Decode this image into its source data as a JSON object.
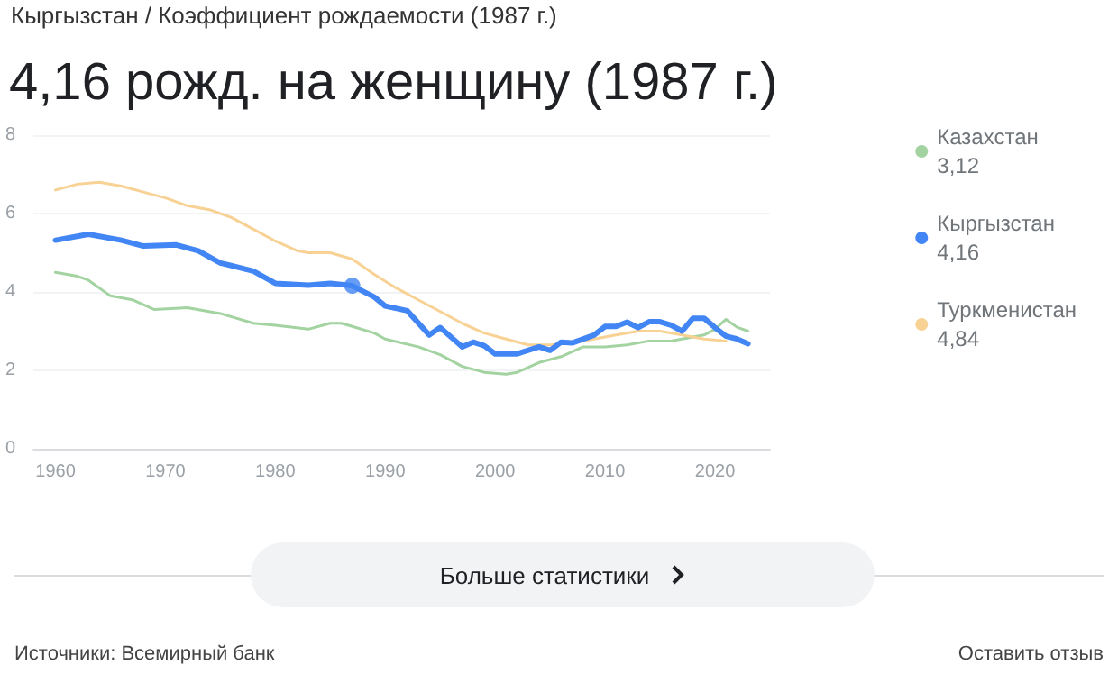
{
  "chart_data": {
    "type": "line",
    "subtitle": "Кыргызстан / Коэффициент рождаемости (1987 г.)",
    "title": "4,16 рожд. на женщину (1987 г.)",
    "annotations": [
      "3,12",
      "4,16",
      "4,84",
      "Больше статистики",
      "Источники: Всемирный банк",
      "Оставить отзыв"
    ],
    "series": [
      {
        "name": "Казахстан",
        "color": "#a3d3a0",
        "x": [
          1960,
          1962,
          1963,
          1965,
          1967,
          1969,
          1972,
          1975,
          1978,
          1980,
          1983,
          1985,
          1986,
          1987,
          1989,
          1990,
          1993,
          1995,
          1997,
          1999,
          2001,
          2002,
          2004,
          2006,
          2008,
          2010,
          2012,
          2014,
          2016,
          2018,
          2019,
          2020,
          2021,
          2022,
          2023
        ],
        "values": [
          4.5,
          4.4,
          4.3,
          3.9,
          3.8,
          3.55,
          3.6,
          3.45,
          3.2,
          3.15,
          3.05,
          3.2,
          3.2,
          3.12,
          2.95,
          2.8,
          2.6,
          2.4,
          2.1,
          1.95,
          1.9,
          1.95,
          2.2,
          2.35,
          2.6,
          2.6,
          2.65,
          2.75,
          2.75,
          2.85,
          2.9,
          3.05,
          3.3,
          3.1,
          3.0
        ]
      },
      {
        "name": "Туркменистан",
        "color": "#f8d194",
        "x": [
          1960,
          1962,
          1964,
          1966,
          1968,
          1970,
          1972,
          1974,
          1976,
          1978,
          1980,
          1982,
          1983,
          1985,
          1987,
          1989,
          1991,
          1993,
          1995,
          1997,
          1999,
          2001,
          2003,
          2005,
          2007,
          2009,
          2011,
          2013,
          2015,
          2017,
          2019,
          2021
        ],
        "values": [
          6.6,
          6.75,
          6.8,
          6.7,
          6.55,
          6.4,
          6.2,
          6.1,
          5.9,
          5.6,
          5.3,
          5.05,
          5.0,
          5.0,
          4.84,
          4.45,
          4.1,
          3.8,
          3.5,
          3.2,
          2.95,
          2.8,
          2.65,
          2.65,
          2.7,
          2.8,
          2.9,
          3.0,
          3.0,
          2.9,
          2.8,
          2.75
        ]
      },
      {
        "name": "Кыргызстан",
        "color": "#4285f4",
        "x": [
          1960,
          1963,
          1966,
          1968,
          1971,
          1973,
          1975,
          1978,
          1980,
          1983,
          1985,
          1987,
          1989,
          1990,
          1992,
          1994,
          1995,
          1997,
          1998,
          1999,
          2000,
          2002,
          2004,
          2005,
          2006,
          2007,
          2009,
          2010,
          2011,
          2012,
          2013,
          2014,
          2015,
          2016,
          2017,
          2018,
          2019,
          2020,
          2021,
          2022,
          2023
        ],
        "values": [
          5.32,
          5.47,
          5.32,
          5.17,
          5.2,
          5.05,
          4.74,
          4.53,
          4.22,
          4.17,
          4.22,
          4.16,
          3.87,
          3.64,
          3.52,
          2.9,
          3.09,
          2.6,
          2.72,
          2.63,
          2.42,
          2.42,
          2.6,
          2.51,
          2.72,
          2.7,
          2.9,
          3.12,
          3.12,
          3.23,
          3.09,
          3.24,
          3.24,
          3.15,
          3.0,
          3.33,
          3.33,
          3.09,
          2.87,
          2.8,
          2.68
        ]
      },
      {
        "type": "scatter",
        "marker": "circle",
        "color": "#4285f4",
        "x": [
          1987
        ],
        "values": [
          4.16
        ]
      }
    ],
    "xlim": [
      1958,
      2025
    ],
    "xticks": [
      1960,
      1970,
      1980,
      1990,
      2000,
      2010,
      2020
    ],
    "ylim": [
      0,
      8
    ],
    "yticks": [
      0,
      2,
      4,
      6,
      8
    ],
    "grid": "y",
    "legend": "right",
    "marker": "none"
  }
}
